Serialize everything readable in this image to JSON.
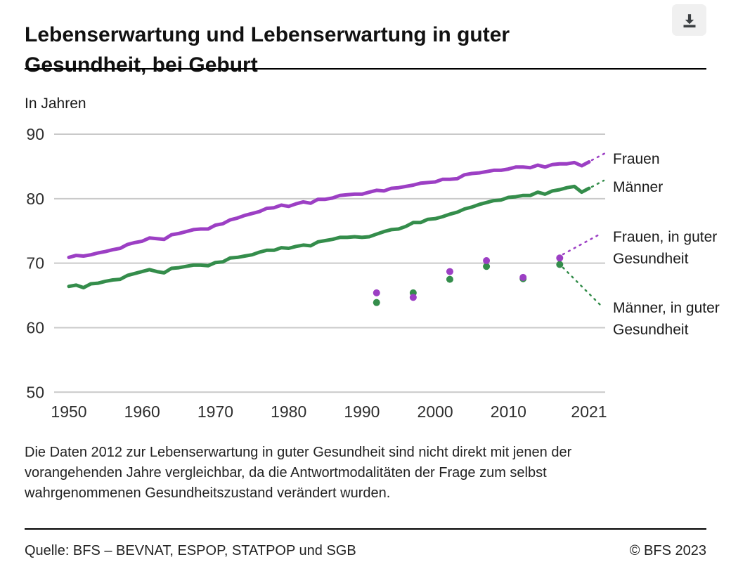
{
  "header": {
    "title": "Lebenserwartung und Lebenserwartung in guter Gesundheit, bei Geburt",
    "download_tooltip": "Download"
  },
  "chart_data": {
    "type": "line",
    "title": "Lebenserwartung und Lebenserwartung in guter Gesundheit, bei Geburt",
    "unit_label": "In Jahren",
    "ylim": [
      50,
      90
    ],
    "yticks": [
      90,
      80,
      70,
      60,
      50
    ],
    "xticks": [
      1950,
      1960,
      1970,
      1980,
      1990,
      2000,
      2010,
      2021
    ],
    "x_range": [
      1950,
      2021
    ],
    "grid": "horizontal-only",
    "legend_position": "right",
    "series": [
      {
        "name": "Frauen",
        "type": "line",
        "color": "#9c3fc4",
        "years_start": 1950,
        "values": [
          70.9,
          71.2,
          71.1,
          71.3,
          71.6,
          71.8,
          72.1,
          72.3,
          72.9,
          73.2,
          73.4,
          73.9,
          73.8,
          73.7,
          74.4,
          74.6,
          74.9,
          75.2,
          75.3,
          75.3,
          75.9,
          76.1,
          76.7,
          77.0,
          77.4,
          77.7,
          78.0,
          78.5,
          78.6,
          79.0,
          78.8,
          79.2,
          79.5,
          79.3,
          79.9,
          79.9,
          80.1,
          80.5,
          80.6,
          80.7,
          80.7,
          81.0,
          81.3,
          81.2,
          81.6,
          81.7,
          81.9,
          82.1,
          82.4,
          82.5,
          82.6,
          83.0,
          83.0,
          83.1,
          83.7,
          83.9,
          84.0,
          84.2,
          84.4,
          84.4,
          84.6,
          84.9,
          84.9,
          84.8,
          85.2,
          84.9,
          85.3,
          85.4,
          85.4,
          85.6,
          85.1,
          85.7
        ]
      },
      {
        "name": "Männer",
        "type": "line",
        "color": "#348d4b",
        "years_start": 1950,
        "values": [
          66.4,
          66.6,
          66.2,
          66.8,
          66.9,
          67.2,
          67.4,
          67.5,
          68.1,
          68.4,
          68.7,
          69.0,
          68.7,
          68.5,
          69.2,
          69.3,
          69.5,
          69.7,
          69.7,
          69.6,
          70.1,
          70.2,
          70.8,
          70.9,
          71.1,
          71.3,
          71.7,
          72.0,
          72.0,
          72.4,
          72.3,
          72.6,
          72.8,
          72.7,
          73.3,
          73.5,
          73.7,
          74.0,
          74.0,
          74.1,
          74.0,
          74.1,
          74.5,
          74.9,
          75.2,
          75.3,
          75.7,
          76.3,
          76.3,
          76.8,
          76.9,
          77.2,
          77.6,
          77.9,
          78.4,
          78.7,
          79.1,
          79.4,
          79.7,
          79.8,
          80.2,
          80.3,
          80.5,
          80.5,
          81.0,
          80.7,
          81.2,
          81.4,
          81.7,
          81.9,
          81.0,
          81.6
        ]
      },
      {
        "name": "Frauen, in guter Gesundheit",
        "type": "scatter",
        "color": "#9c3fc4",
        "years": [
          1992,
          1997,
          2002,
          2007,
          2012,
          2017
        ],
        "values": [
          65.4,
          64.7,
          68.7,
          70.4,
          67.8,
          70.8
        ]
      },
      {
        "name": "Männer, in guter Gesundheit",
        "type": "scatter",
        "color": "#348d4b",
        "years": [
          1992,
          1997,
          2002,
          2007,
          2012,
          2017
        ],
        "values": [
          63.9,
          65.4,
          67.5,
          69.5,
          67.6,
          69.8
        ]
      }
    ]
  },
  "footnote": "Die Daten 2012 zur Lebenserwartung in guter Gesundheit sind nicht direkt mit jenen der vorangehenden Jahre vergleichbar, da die Antwortmodalitäten der Frage zum selbst wahrgenommenen Gesundheitszustand verändert wurden.",
  "footer": {
    "source": "Quelle: BFS – BEVNAT, ESPOP, STATPOP und SGB",
    "copyright": "© BFS 2023"
  },
  "colors": {
    "frauen": "#9c3fc4",
    "maenner": "#348d4b",
    "grid": "#c9c9c9",
    "tick_text": "#2e2e2e",
    "icon": "#3c4043"
  }
}
